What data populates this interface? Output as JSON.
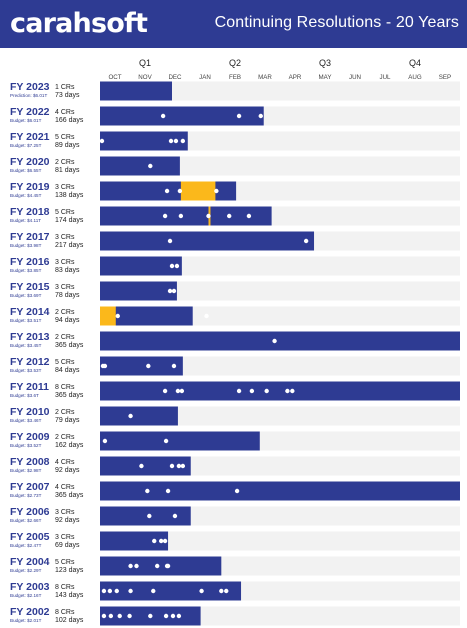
{
  "header": {
    "brand": "carahsoft",
    "title": "Continuing Resolutions - 20 Years"
  },
  "colors": {
    "bar": "#2e3b93",
    "shutdown": "#fbb81b",
    "track": "#f2f2f2",
    "dot": "#ffffff"
  },
  "chart_data": {
    "type": "bar",
    "title": "Continuing Resolutions - 20 Years",
    "quarters": [
      "Q1",
      "Q2",
      "Q3",
      "Q4"
    ],
    "months": [
      "OCT",
      "NOV",
      "DEC",
      "JAN",
      "FEB",
      "MAR",
      "APR",
      "MAY",
      "JUN",
      "JUL",
      "AUG",
      "SEP"
    ],
    "xlim_days": [
      0,
      365
    ],
    "rows": [
      {
        "fy": "FY 2023",
        "crs": "1 CRs",
        "days": 73,
        "days_label": "73 days",
        "budget": "Prediction: $6.01T",
        "dots": [],
        "shutdowns": []
      },
      {
        "fy": "FY 2022",
        "crs": "4 CRs",
        "days": 166,
        "days_label": "166 days",
        "budget": "Budget: $6.01T",
        "dots": [
          64,
          141,
          163
        ],
        "shutdowns": []
      },
      {
        "fy": "FY 2021",
        "crs": "5 CRs",
        "days": 89,
        "days_label": "89 days",
        "budget": "Budget: $7.25T",
        "dots": [
          2,
          72,
          77,
          84
        ],
        "shutdowns": []
      },
      {
        "fy": "FY 2020",
        "crs": "2 CRs",
        "days": 81,
        "days_label": "81 days",
        "budget": "Budget: $6.55T",
        "dots": [
          51
        ],
        "shutdowns": []
      },
      {
        "fy": "FY 2019",
        "crs": "3 CRs",
        "days": 138,
        "days_label": "138 days",
        "budget": "Budget: $4.45T",
        "dots": [
          68,
          81,
          118
        ],
        "shutdowns": [
          [
            82,
            117
          ]
        ]
      },
      {
        "fy": "FY 2018",
        "crs": "5 CRs",
        "days": 174,
        "days_label": "174 days",
        "budget": "Budget: $4.11T",
        "dots": [
          66,
          82,
          110,
          131,
          151
        ],
        "shutdowns": [
          [
            110,
            112
          ]
        ]
      },
      {
        "fy": "FY 2017",
        "crs": "3 CRs",
        "days": 217,
        "days_label": "217 days",
        "budget": "Budget: $3.98T",
        "dots": [
          71,
          209
        ],
        "shutdowns": []
      },
      {
        "fy": "FY 2016",
        "crs": "3 CRs",
        "days": 83,
        "days_label": "83 days",
        "budget": "Budget: $3.85T",
        "dots": [
          73,
          78
        ],
        "shutdowns": []
      },
      {
        "fy": "FY 2015",
        "crs": "3 CRs",
        "days": 78,
        "days_label": "78 days",
        "budget": "Budget: $3.69T",
        "dots": [
          71,
          75
        ],
        "shutdowns": []
      },
      {
        "fy": "FY 2014",
        "crs": "2 CRs",
        "days": 94,
        "days_label": "94 days",
        "budget": "Budget: $3.51T",
        "dots": [
          18,
          108
        ],
        "shutdowns": [
          [
            0,
            16
          ]
        ]
      },
      {
        "fy": "FY 2013",
        "crs": "2 CRs",
        "days": 365,
        "days_label": "365 days",
        "budget": "Budget: $3.45T",
        "dots": [
          177
        ],
        "shutdowns": []
      },
      {
        "fy": "FY 2012",
        "crs": "5 CRs",
        "days": 84,
        "days_label": "84 days",
        "budget": "Budget: $3.53T",
        "dots": [
          3,
          5,
          49,
          75
        ],
        "shutdowns": []
      },
      {
        "fy": "FY 2011",
        "crs": "8 CRs",
        "days": 365,
        "days_label": "365 days",
        "budget": "Budget: $3.6T",
        "dots": [
          66,
          79,
          83,
          141,
          154,
          169,
          190,
          195
        ],
        "shutdowns": []
      },
      {
        "fy": "FY 2010",
        "crs": "2 CRs",
        "days": 79,
        "days_label": "79 days",
        "budget": "Budget: $3.46T",
        "dots": [
          31
        ],
        "shutdowns": []
      },
      {
        "fy": "FY 2009",
        "crs": "2 CRs",
        "days": 162,
        "days_label": "162 days",
        "budget": "Budget: $3.52T",
        "dots": [
          5,
          67
        ],
        "shutdowns": []
      },
      {
        "fy": "FY 2008",
        "crs": "4 CRs",
        "days": 92,
        "days_label": "92 days",
        "budget": "Budget: $2.98T",
        "dots": [
          42,
          73,
          80,
          84
        ],
        "shutdowns": []
      },
      {
        "fy": "FY 2007",
        "crs": "4 CRs",
        "days": 365,
        "days_label": "365 days",
        "budget": "Budget: $2.73T",
        "dots": [
          48,
          69,
          139
        ],
        "shutdowns": []
      },
      {
        "fy": "FY 2006",
        "crs": "3 CRs",
        "days": 92,
        "days_label": "92 days",
        "budget": "Budget: $2.66T",
        "dots": [
          50,
          76
        ],
        "shutdowns": []
      },
      {
        "fy": "FY 2005",
        "crs": "3 CRs",
        "days": 69,
        "days_label": "69 days",
        "budget": "Budget: $2.47T",
        "dots": [
          55,
          62,
          66
        ],
        "shutdowns": []
      },
      {
        "fy": "FY 2004",
        "crs": "5 CRs",
        "days": 123,
        "days_label": "123 days",
        "budget": "Budget: $2.29T",
        "dots": [
          31,
          37,
          58,
          68,
          69
        ],
        "shutdowns": []
      },
      {
        "fy": "FY 2003",
        "crs": "8 CRs",
        "days": 143,
        "days_label": "143 days",
        "budget": "Budget: $2.16T",
        "dots": [
          4,
          10,
          17,
          31,
          54,
          103,
          123,
          128
        ],
        "shutdowns": []
      },
      {
        "fy": "FY 2002",
        "crs": "8 CRs",
        "days": 102,
        "days_label": "102 days",
        "budget": "Budget: $2.01T",
        "dots": [
          4,
          11,
          20,
          30,
          51,
          67,
          74,
          80
        ],
        "shutdowns": []
      }
    ]
  }
}
